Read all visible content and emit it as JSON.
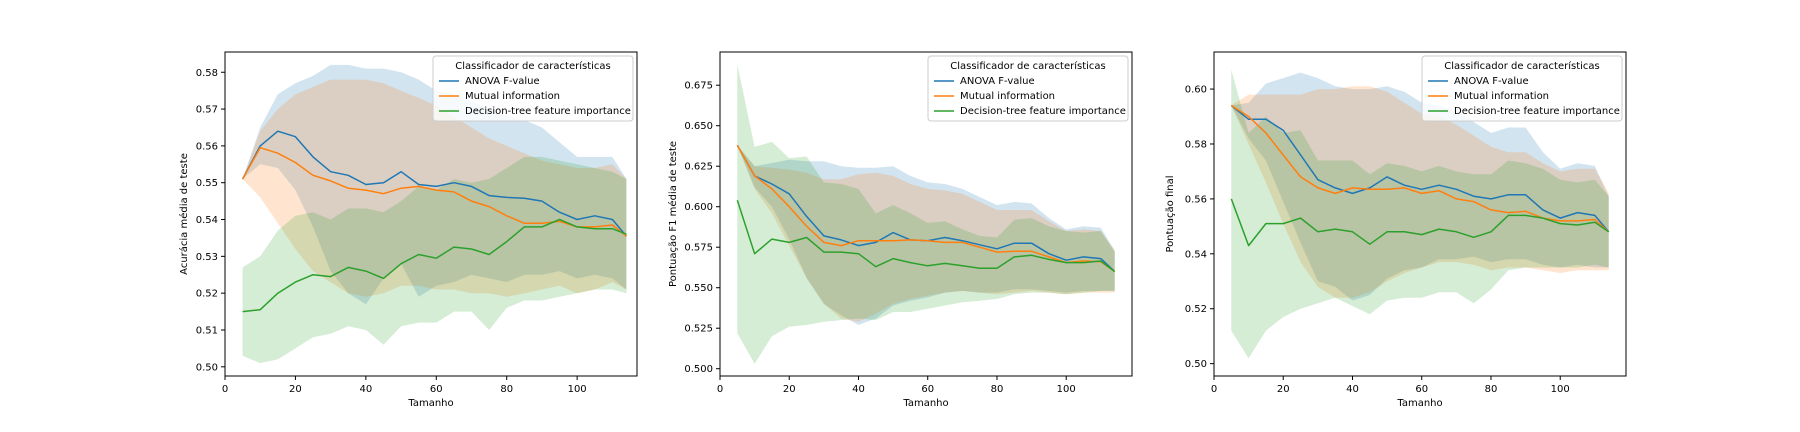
{
  "chart_data": [
    {
      "type": "line",
      "xlabel": "Tamanho",
      "ylabel": "Acurácia média de teste",
      "xlim": [
        0,
        117
      ],
      "ylim": [
        0.4975,
        0.5855
      ],
      "xticks": [
        0,
        20,
        40,
        60,
        80,
        100
      ],
      "yticks": [
        0.5,
        0.51,
        0.52,
        0.53,
        0.54,
        0.55,
        0.56,
        0.57,
        0.58
      ],
      "tick_decimals": 2,
      "legend": {
        "title": "Classificador de características",
        "position": "top-right"
      },
      "x": [
        5,
        10,
        15,
        20,
        25,
        30,
        35,
        40,
        45,
        50,
        55,
        60,
        65,
        70,
        75,
        80,
        85,
        90,
        95,
        100,
        105,
        110,
        114
      ],
      "series": [
        {
          "name": "ANOVA F-value",
          "color": "#1f77b4",
          "values": [
            0.551,
            0.56,
            0.564,
            0.5625,
            0.557,
            0.553,
            0.552,
            0.5495,
            0.55,
            0.553,
            0.5495,
            0.549,
            0.55,
            0.549,
            0.5465,
            0.546,
            0.5458,
            0.545,
            0.542,
            0.54,
            0.541,
            0.54,
            0.5355
          ],
          "lower": [
            0.551,
            0.555,
            0.554,
            0.548,
            0.538,
            0.526,
            0.52,
            0.517,
            0.524,
            0.528,
            0.519,
            0.522,
            0.523,
            0.525,
            0.524,
            0.523,
            0.525,
            0.525,
            0.526,
            0.524,
            0.525,
            0.524,
            0.521
          ],
          "upper": [
            0.551,
            0.565,
            0.574,
            0.577,
            0.579,
            0.582,
            0.582,
            0.581,
            0.581,
            0.58,
            0.578,
            0.575,
            0.574,
            0.572,
            0.57,
            0.568,
            0.567,
            0.565,
            0.561,
            0.557,
            0.557,
            0.557,
            0.551
          ]
        },
        {
          "name": "Mutual information",
          "color": "#ff7f0e",
          "values": [
            0.551,
            0.5595,
            0.558,
            0.5555,
            0.552,
            0.5505,
            0.5485,
            0.548,
            0.547,
            0.5485,
            0.549,
            0.548,
            0.5475,
            0.545,
            0.5435,
            0.541,
            0.539,
            0.539,
            0.5395,
            0.538,
            0.538,
            0.5385,
            0.5355
          ],
          "lower": [
            0.551,
            0.546,
            0.539,
            0.532,
            0.526,
            0.523,
            0.52,
            0.519,
            0.52,
            0.522,
            0.522,
            0.521,
            0.521,
            0.52,
            0.52,
            0.519,
            0.52,
            0.521,
            0.522,
            0.52,
            0.521,
            0.523,
            0.521
          ],
          "upper": [
            0.551,
            0.564,
            0.57,
            0.574,
            0.576,
            0.578,
            0.578,
            0.578,
            0.577,
            0.575,
            0.573,
            0.571,
            0.568,
            0.565,
            0.562,
            0.56,
            0.558,
            0.556,
            0.555,
            0.554,
            0.554,
            0.555,
            0.551
          ]
        },
        {
          "name": "Decision-tree feature importance",
          "color": "#2ca02c",
          "values": [
            0.515,
            0.5155,
            0.52,
            0.523,
            0.525,
            0.5245,
            0.527,
            0.526,
            0.524,
            0.528,
            0.5305,
            0.5295,
            0.5325,
            0.532,
            0.5305,
            0.534,
            0.538,
            0.538,
            0.54,
            0.538,
            0.5375,
            0.5375,
            0.536
          ]
        },
        {
          "name": "",
          "color": "#2ca02c",
          "band_only": true,
          "lower": [
            0.503,
            0.501,
            0.502,
            0.505,
            0.508,
            0.509,
            0.511,
            0.51,
            0.506,
            0.511,
            0.512,
            0.512,
            0.515,
            0.515,
            0.51,
            0.516,
            0.518,
            0.518,
            0.519,
            0.52,
            0.521,
            0.521,
            0.52
          ],
          "upper": [
            0.527,
            0.53,
            0.537,
            0.541,
            0.542,
            0.54,
            0.543,
            0.543,
            0.542,
            0.545,
            0.549,
            0.548,
            0.551,
            0.55,
            0.551,
            0.554,
            0.557,
            0.557,
            0.556,
            0.555,
            0.554,
            0.553,
            0.551
          ]
        }
      ]
    },
    {
      "type": "line",
      "xlabel": "Tamanho",
      "ylabel": "Pontuação F1 média de teste",
      "xlim": [
        0,
        119
      ],
      "ylim": [
        0.4955,
        0.6955
      ],
      "xticks": [
        0,
        20,
        40,
        60,
        80,
        100
      ],
      "yticks": [
        0.5,
        0.525,
        0.55,
        0.575,
        0.6,
        0.625,
        0.65,
        0.675
      ],
      "tick_decimals": 3,
      "legend": {
        "title": "Classificador de características",
        "position": "top-right"
      },
      "x": [
        5,
        10,
        15,
        20,
        25,
        30,
        35,
        40,
        45,
        50,
        55,
        60,
        65,
        70,
        75,
        80,
        85,
        90,
        95,
        100,
        105,
        110,
        114
      ],
      "series": [
        {
          "name": "ANOVA F-value",
          "color": "#1f77b4",
          "values": [
            0.638,
            0.619,
            0.614,
            0.608,
            0.594,
            0.582,
            0.5795,
            0.576,
            0.578,
            0.584,
            0.5795,
            0.579,
            0.581,
            0.579,
            0.5765,
            0.574,
            0.5775,
            0.5775,
            0.571,
            0.567,
            0.569,
            0.568,
            0.56
          ],
          "lower": [
            0.638,
            0.612,
            0.6,
            0.58,
            0.556,
            0.54,
            0.533,
            0.527,
            0.531,
            0.539,
            0.542,
            0.544,
            0.547,
            0.548,
            0.547,
            0.547,
            0.549,
            0.549,
            0.548,
            0.547,
            0.548,
            0.548,
            0.548
          ],
          "upper": [
            0.638,
            0.625,
            0.627,
            0.629,
            0.628,
            0.628,
            0.625,
            0.624,
            0.624,
            0.625,
            0.619,
            0.615,
            0.614,
            0.611,
            0.606,
            0.601,
            0.603,
            0.602,
            0.593,
            0.586,
            0.588,
            0.587,
            0.573
          ]
        },
        {
          "name": "Mutual information",
          "color": "#ff7f0e",
          "values": [
            0.638,
            0.619,
            0.611,
            0.6,
            0.588,
            0.578,
            0.576,
            0.579,
            0.579,
            0.579,
            0.5795,
            0.579,
            0.578,
            0.578,
            0.575,
            0.572,
            0.5725,
            0.5725,
            0.569,
            0.5655,
            0.5665,
            0.566,
            0.56
          ],
          "lower": [
            0.638,
            0.611,
            0.596,
            0.576,
            0.556,
            0.54,
            0.531,
            0.529,
            0.534,
            0.54,
            0.543,
            0.545,
            0.547,
            0.548,
            0.547,
            0.546,
            0.547,
            0.548,
            0.547,
            0.546,
            0.547,
            0.547,
            0.547
          ],
          "upper": [
            0.638,
            0.625,
            0.624,
            0.623,
            0.621,
            0.617,
            0.617,
            0.62,
            0.621,
            0.619,
            0.614,
            0.611,
            0.61,
            0.608,
            0.603,
            0.598,
            0.598,
            0.598,
            0.591,
            0.585,
            0.586,
            0.585,
            0.573
          ]
        },
        {
          "name": "Decision-tree feature importance",
          "color": "#2ca02c",
          "values": [
            0.604,
            0.571,
            0.58,
            0.578,
            0.581,
            0.572,
            0.572,
            0.571,
            0.563,
            0.568,
            0.5655,
            0.5635,
            0.565,
            0.5635,
            0.562,
            0.562,
            0.569,
            0.57,
            0.5675,
            0.5655,
            0.5655,
            0.5665,
            0.56
          ],
          "lower": [
            0.522,
            0.503,
            0.52,
            0.526,
            0.527,
            0.529,
            0.53,
            0.531,
            0.53,
            0.535,
            0.535,
            0.537,
            0.539,
            0.541,
            0.542,
            0.543,
            0.546,
            0.547,
            0.547,
            0.546,
            0.547,
            0.548,
            0.548
          ],
          "upper": [
            0.688,
            0.637,
            0.64,
            0.63,
            0.631,
            0.615,
            0.614,
            0.611,
            0.596,
            0.601,
            0.596,
            0.59,
            0.591,
            0.586,
            0.582,
            0.581,
            0.592,
            0.593,
            0.588,
            0.585,
            0.584,
            0.585,
            0.572
          ]
        }
      ]
    },
    {
      "type": "line",
      "xlabel": "Tamanho",
      "ylabel": "Pontuação final",
      "xlim": [
        0,
        119
      ],
      "ylim": [
        0.4955,
        0.6135
      ],
      "xticks": [
        0,
        20,
        40,
        60,
        80,
        100
      ],
      "yticks": [
        0.5,
        0.52,
        0.54,
        0.56,
        0.58,
        0.6
      ],
      "tick_decimals": 2,
      "legend": {
        "title": "Classificador de características",
        "position": "top-right"
      },
      "x": [
        5,
        10,
        15,
        20,
        25,
        30,
        35,
        40,
        45,
        50,
        55,
        60,
        65,
        70,
        75,
        80,
        85,
        90,
        95,
        100,
        105,
        110,
        114
      ],
      "series": [
        {
          "name": "ANOVA F-value",
          "color": "#1f77b4",
          "values": [
            0.594,
            0.589,
            0.589,
            0.585,
            0.576,
            0.567,
            0.564,
            0.562,
            0.564,
            0.568,
            0.565,
            0.5635,
            0.565,
            0.5635,
            0.561,
            0.56,
            0.5615,
            0.5615,
            0.556,
            0.553,
            0.555,
            0.554,
            0.548
          ],
          "lower": [
            0.594,
            0.582,
            0.574,
            0.559,
            0.544,
            0.53,
            0.528,
            0.523,
            0.525,
            0.531,
            0.534,
            0.535,
            0.538,
            0.538,
            0.539,
            0.537,
            0.538,
            0.538,
            0.536,
            0.535,
            0.536,
            0.535,
            0.535
          ],
          "upper": [
            0.594,
            0.595,
            0.602,
            0.604,
            0.606,
            0.604,
            0.601,
            0.6,
            0.6,
            0.601,
            0.599,
            0.595,
            0.594,
            0.592,
            0.588,
            0.584,
            0.586,
            0.586,
            0.577,
            0.571,
            0.573,
            0.572,
            0.561
          ]
        },
        {
          "name": "Mutual information",
          "color": "#ff7f0e",
          "values": [
            0.594,
            0.59,
            0.584,
            0.576,
            0.568,
            0.564,
            0.562,
            0.564,
            0.5635,
            0.5635,
            0.564,
            0.562,
            0.563,
            0.56,
            0.559,
            0.556,
            0.555,
            0.5555,
            0.553,
            0.552,
            0.552,
            0.5525,
            0.548
          ],
          "lower": [
            0.594,
            0.58,
            0.566,
            0.551,
            0.537,
            0.528,
            0.524,
            0.524,
            0.526,
            0.53,
            0.533,
            0.535,
            0.537,
            0.537,
            0.536,
            0.534,
            0.535,
            0.535,
            0.534,
            0.533,
            0.534,
            0.534,
            0.534
          ],
          "upper": [
            0.594,
            0.598,
            0.598,
            0.598,
            0.598,
            0.6,
            0.6,
            0.601,
            0.601,
            0.599,
            0.595,
            0.591,
            0.59,
            0.587,
            0.583,
            0.579,
            0.577,
            0.577,
            0.573,
            0.57,
            0.571,
            0.571,
            0.562
          ]
        },
        {
          "name": "Decision-tree feature importance",
          "color": "#2ca02c",
          "values": [
            0.56,
            0.543,
            0.551,
            0.551,
            0.553,
            0.548,
            0.549,
            0.548,
            0.5435,
            0.548,
            0.548,
            0.547,
            0.549,
            0.548,
            0.546,
            0.548,
            0.554,
            0.554,
            0.553,
            0.551,
            0.5505,
            0.5515,
            0.548
          ],
          "lower": [
            0.512,
            0.502,
            0.512,
            0.517,
            0.52,
            0.522,
            0.524,
            0.521,
            0.518,
            0.523,
            0.524,
            0.524,
            0.526,
            0.526,
            0.522,
            0.527,
            0.534,
            0.535,
            0.535,
            0.535,
            0.535,
            0.536,
            0.535
          ],
          "upper": [
            0.607,
            0.584,
            0.59,
            0.584,
            0.585,
            0.574,
            0.574,
            0.574,
            0.569,
            0.573,
            0.572,
            0.57,
            0.572,
            0.57,
            0.569,
            0.569,
            0.574,
            0.573,
            0.571,
            0.567,
            0.566,
            0.567,
            0.561
          ]
        }
      ]
    }
  ]
}
